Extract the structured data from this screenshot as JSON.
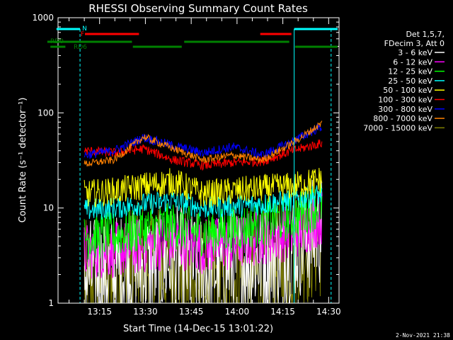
{
  "chart_data": {
    "type": "line",
    "title": "RHESSI Observing Summary Count Rates",
    "xlabel": "Start Time (14-Dec-15 13:01:22)",
    "ylabel": "Count Rate (s⁻¹ detector⁻¹)",
    "yscale": "log",
    "ylim": [
      1,
      1000
    ],
    "xlim": [
      0,
      92
    ],
    "x_units": "minutes after 13:01:22",
    "x_ticks": [
      {
        "label": "13:15",
        "value": 13.6
      },
      {
        "label": "13:30",
        "value": 28.6
      },
      {
        "label": "13:45",
        "value": 43.6
      },
      {
        "label": "14:00",
        "value": 58.6
      },
      {
        "label": "14:15",
        "value": 73.6
      },
      {
        "label": "14:30",
        "value": 88.6
      }
    ],
    "y_ticks": [
      {
        "label": "1",
        "value": 1
      },
      {
        "label": "10",
        "value": 10
      },
      {
        "label": "100",
        "value": 100
      },
      {
        "label": "1000",
        "value": 1000
      }
    ],
    "legend_header": [
      "Det 1,5,7,",
      "FDecim 3, Att 0"
    ],
    "series": [
      {
        "name": "3 - 6 keV",
        "color": "#ffffff",
        "base": [
          2,
          2.2,
          2.5,
          2.8,
          2.2,
          2.6,
          3.0,
          4.0,
          6.0
        ],
        "noise": 0.6
      },
      {
        "name": "6 - 12 keV",
        "color": "#ff00ff",
        "base": [
          3.5,
          3.6,
          4,
          4.5,
          4,
          4.2,
          5,
          5.5,
          8
        ],
        "noise": 0.3
      },
      {
        "name": "12 - 25 keV",
        "color": "#00ff00",
        "base": [
          5,
          5.2,
          6,
          6.5,
          5.5,
          6,
          7,
          8,
          11
        ],
        "noise": 0.25
      },
      {
        "name": "25 - 50 keV",
        "color": "#00ffff",
        "base": [
          9.5,
          10,
          11,
          12,
          10,
          10.5,
          11,
          12,
          14
        ],
        "noise": 0.12
      },
      {
        "name": "50 - 100 keV",
        "color": "#ffff00",
        "base": [
          14,
          15,
          17,
          19,
          14,
          15,
          16,
          17,
          20
        ],
        "noise": 0.15
      },
      {
        "name": "100 - 300 keV",
        "color": "#ff0000",
        "base": [
          40,
          38,
          42,
          32,
          28,
          30,
          31,
          40,
          48
        ],
        "noise": 0.05
      },
      {
        "name": "300 - 800 keV",
        "color": "#0000ff",
        "base": [
          36,
          40,
          55,
          45,
          38,
          44,
          36,
          50,
          72
        ],
        "noise": 0.05
      },
      {
        "name": "800 - 7000 keV",
        "color": "#ff8000",
        "base": [
          29,
          32,
          56,
          42,
          32,
          36,
          32,
          48,
          78
        ],
        "noise": 0.04
      },
      {
        "name": "7000 - 15000 keV",
        "color": "#808000",
        "base": [
          1.5,
          1.8,
          2.6,
          2.4,
          1.6,
          1.8,
          2.0,
          3.5,
          5.5
        ],
        "noise": 0.7
      }
    ],
    "annotations": {
      "top_left_markers": [
        "N",
        "F"
      ],
      "flag_labels": [
        "RD0",
        "RD6"
      ],
      "timestamp": "2-Nov-2021 21:38"
    }
  }
}
